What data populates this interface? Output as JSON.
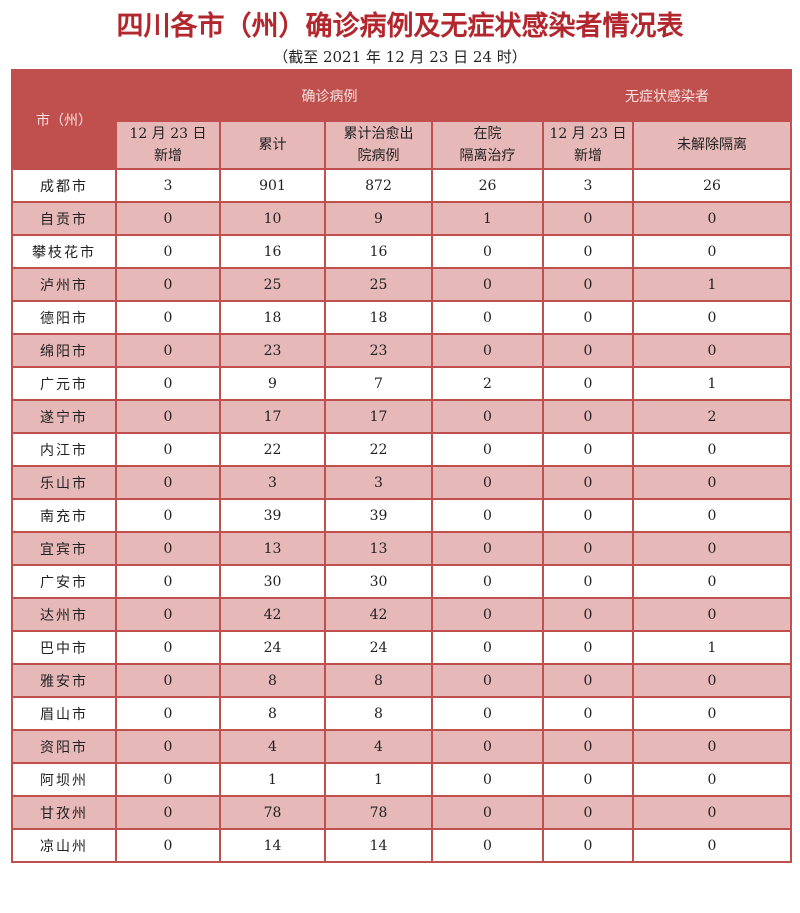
{
  "title": "四川各市（州）确诊病例及无症状感染者情况表",
  "subtitle": "（截至 2021 年 12 月 23 日 24 时）",
  "colors": {
    "header": "#c0504d",
    "alt_row": "#e6b8b7",
    "title": "#b2262d"
  },
  "header": {
    "city": "市（州）",
    "confirmed_group": "确诊病例",
    "asymptomatic_group": "无症状感染者",
    "columns": [
      [
        "12 月 23 日",
        "新增"
      ],
      [
        "累计"
      ],
      [
        "累计治愈出",
        "院病例"
      ],
      [
        "在院",
        "隔离治疗"
      ],
      [
        "12 月 23 日",
        "新增"
      ],
      [
        "未解除隔离"
      ]
    ]
  },
  "rows": [
    [
      "成都市",
      "3",
      "901",
      "872",
      "26",
      "3",
      "26"
    ],
    [
      "自贡市",
      "0",
      "10",
      "9",
      "1",
      "0",
      "0"
    ],
    [
      "攀枝花市",
      "0",
      "16",
      "16",
      "0",
      "0",
      "0"
    ],
    [
      "泸州市",
      "0",
      "25",
      "25",
      "0",
      "0",
      "1"
    ],
    [
      "德阳市",
      "0",
      "18",
      "18",
      "0",
      "0",
      "0"
    ],
    [
      "绵阳市",
      "0",
      "23",
      "23",
      "0",
      "0",
      "0"
    ],
    [
      "广元市",
      "0",
      "9",
      "7",
      "2",
      "0",
      "1"
    ],
    [
      "遂宁市",
      "0",
      "17",
      "17",
      "0",
      "0",
      "2"
    ],
    [
      "内江市",
      "0",
      "22",
      "22",
      "0",
      "0",
      "0"
    ],
    [
      "乐山市",
      "0",
      "3",
      "3",
      "0",
      "0",
      "0"
    ],
    [
      "南充市",
      "0",
      "39",
      "39",
      "0",
      "0",
      "0"
    ],
    [
      "宜宾市",
      "0",
      "13",
      "13",
      "0",
      "0",
      "0"
    ],
    [
      "广安市",
      "0",
      "30",
      "30",
      "0",
      "0",
      "0"
    ],
    [
      "达州市",
      "0",
      "42",
      "42",
      "0",
      "0",
      "0"
    ],
    [
      "巴中市",
      "0",
      "24",
      "24",
      "0",
      "0",
      "1"
    ],
    [
      "雅安市",
      "0",
      "8",
      "8",
      "0",
      "0",
      "0"
    ],
    [
      "眉山市",
      "0",
      "8",
      "8",
      "0",
      "0",
      "0"
    ],
    [
      "资阳市",
      "0",
      "4",
      "4",
      "0",
      "0",
      "0"
    ],
    [
      "阿坝州",
      "0",
      "1",
      "1",
      "0",
      "0",
      "0"
    ],
    [
      "甘孜州",
      "0",
      "78",
      "78",
      "0",
      "0",
      "0"
    ],
    [
      "凉山州",
      "0",
      "14",
      "14",
      "0",
      "0",
      "0"
    ]
  ]
}
